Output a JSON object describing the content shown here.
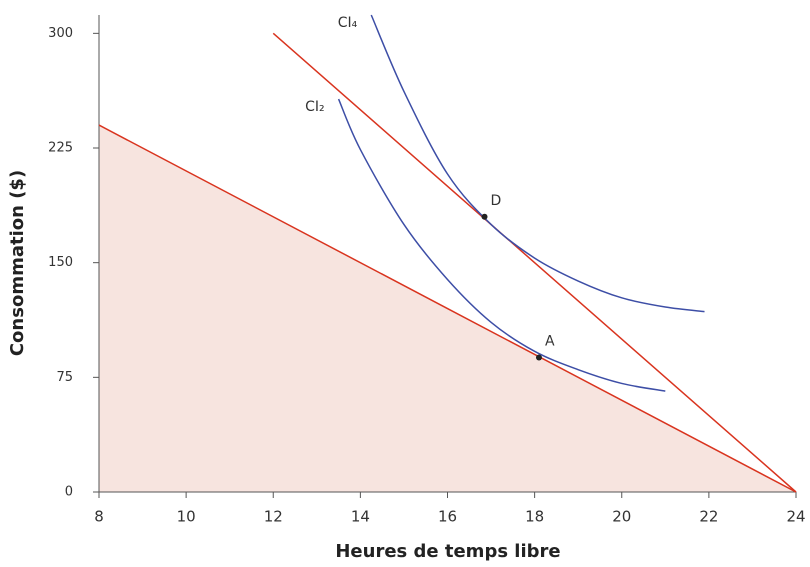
{
  "chart_data": {
    "type": "line",
    "xlabel": "Heures de temps libre",
    "ylabel": "Consommation ($)",
    "xlim": [
      8,
      24
    ],
    "xticks": [
      8,
      10,
      12,
      14,
      16,
      18,
      20,
      22,
      24
    ],
    "ylim": [
      0,
      312
    ],
    "yticks": [
      0,
      75,
      150,
      225,
      300
    ],
    "area_fill": "#f7e4df",
    "series": [
      {
        "color": "#d9341f",
        "fill_below": true,
        "x": [
          8,
          24
        ],
        "values": [
          240,
          0
        ]
      },
      {
        "color": "#d9341f",
        "x": [
          12,
          24
        ],
        "values": [
          300,
          0
        ]
      },
      {
        "name": "CI₂",
        "color": "#3d4ea6",
        "x": [
          13.5,
          14,
          15,
          16,
          17,
          18,
          19,
          20,
          21
        ],
        "values": [
          257,
          224,
          175,
          139,
          111,
          92,
          80,
          71,
          66
        ]
      },
      {
        "name": "CI₄",
        "color": "#3d4ea6",
        "x": [
          14.25,
          15,
          16,
          17,
          18,
          19,
          20,
          21,
          21.9
        ],
        "values": [
          312,
          262,
          208,
          175,
          153,
          138,
          127,
          121,
          118
        ]
      }
    ],
    "points": [
      {
        "label": "A",
        "x": 18.1,
        "y": 88
      },
      {
        "label": "D",
        "x": 16.85,
        "y": 180
      }
    ]
  }
}
